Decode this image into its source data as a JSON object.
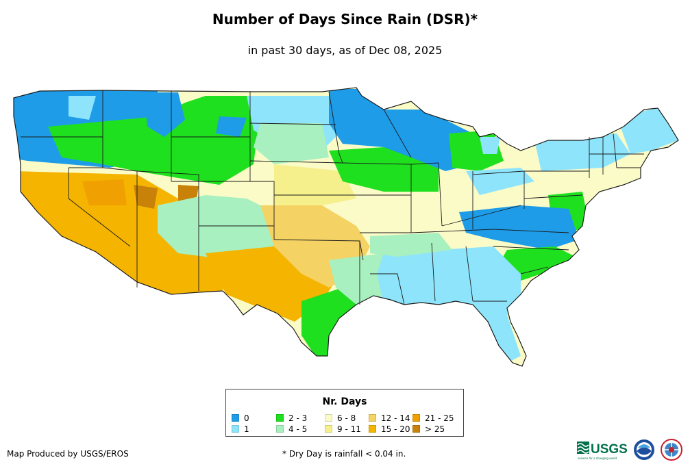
{
  "title": "Number of Days Since Rain (DSR)*",
  "subtitle": "in past 30 days, as of Dec 08, 2025",
  "legend": {
    "title": "Nr. Days",
    "items": [
      {
        "label": "0",
        "color": "#1e9ce8"
      },
      {
        "label": "1",
        "color": "#8ee4fb"
      },
      {
        "label": "2 - 3",
        "color": "#1ee01e"
      },
      {
        "label": "4 - 5",
        "color": "#a8f0c0"
      },
      {
        "label": "6 - 8",
        "color": "#fbfbc8"
      },
      {
        "label": "9 - 11",
        "color": "#f5f08c"
      },
      {
        "label": "12 - 14",
        "color": "#f5d264"
      },
      {
        "label": "15 - 20",
        "color": "#f5b400"
      },
      {
        "label": "21 - 25",
        "color": "#f0a000"
      },
      {
        "label": "> 25",
        "color": "#c8820a"
      }
    ]
  },
  "credit": "Map Produced by USGS/EROS",
  "footnote": "* Dry Day is rainfall < 0.04 in.",
  "logos": {
    "usgs": "USGS",
    "usgs_tagline": "science for a changing world",
    "noaa": "NOAA",
    "nws": "NWS"
  }
}
